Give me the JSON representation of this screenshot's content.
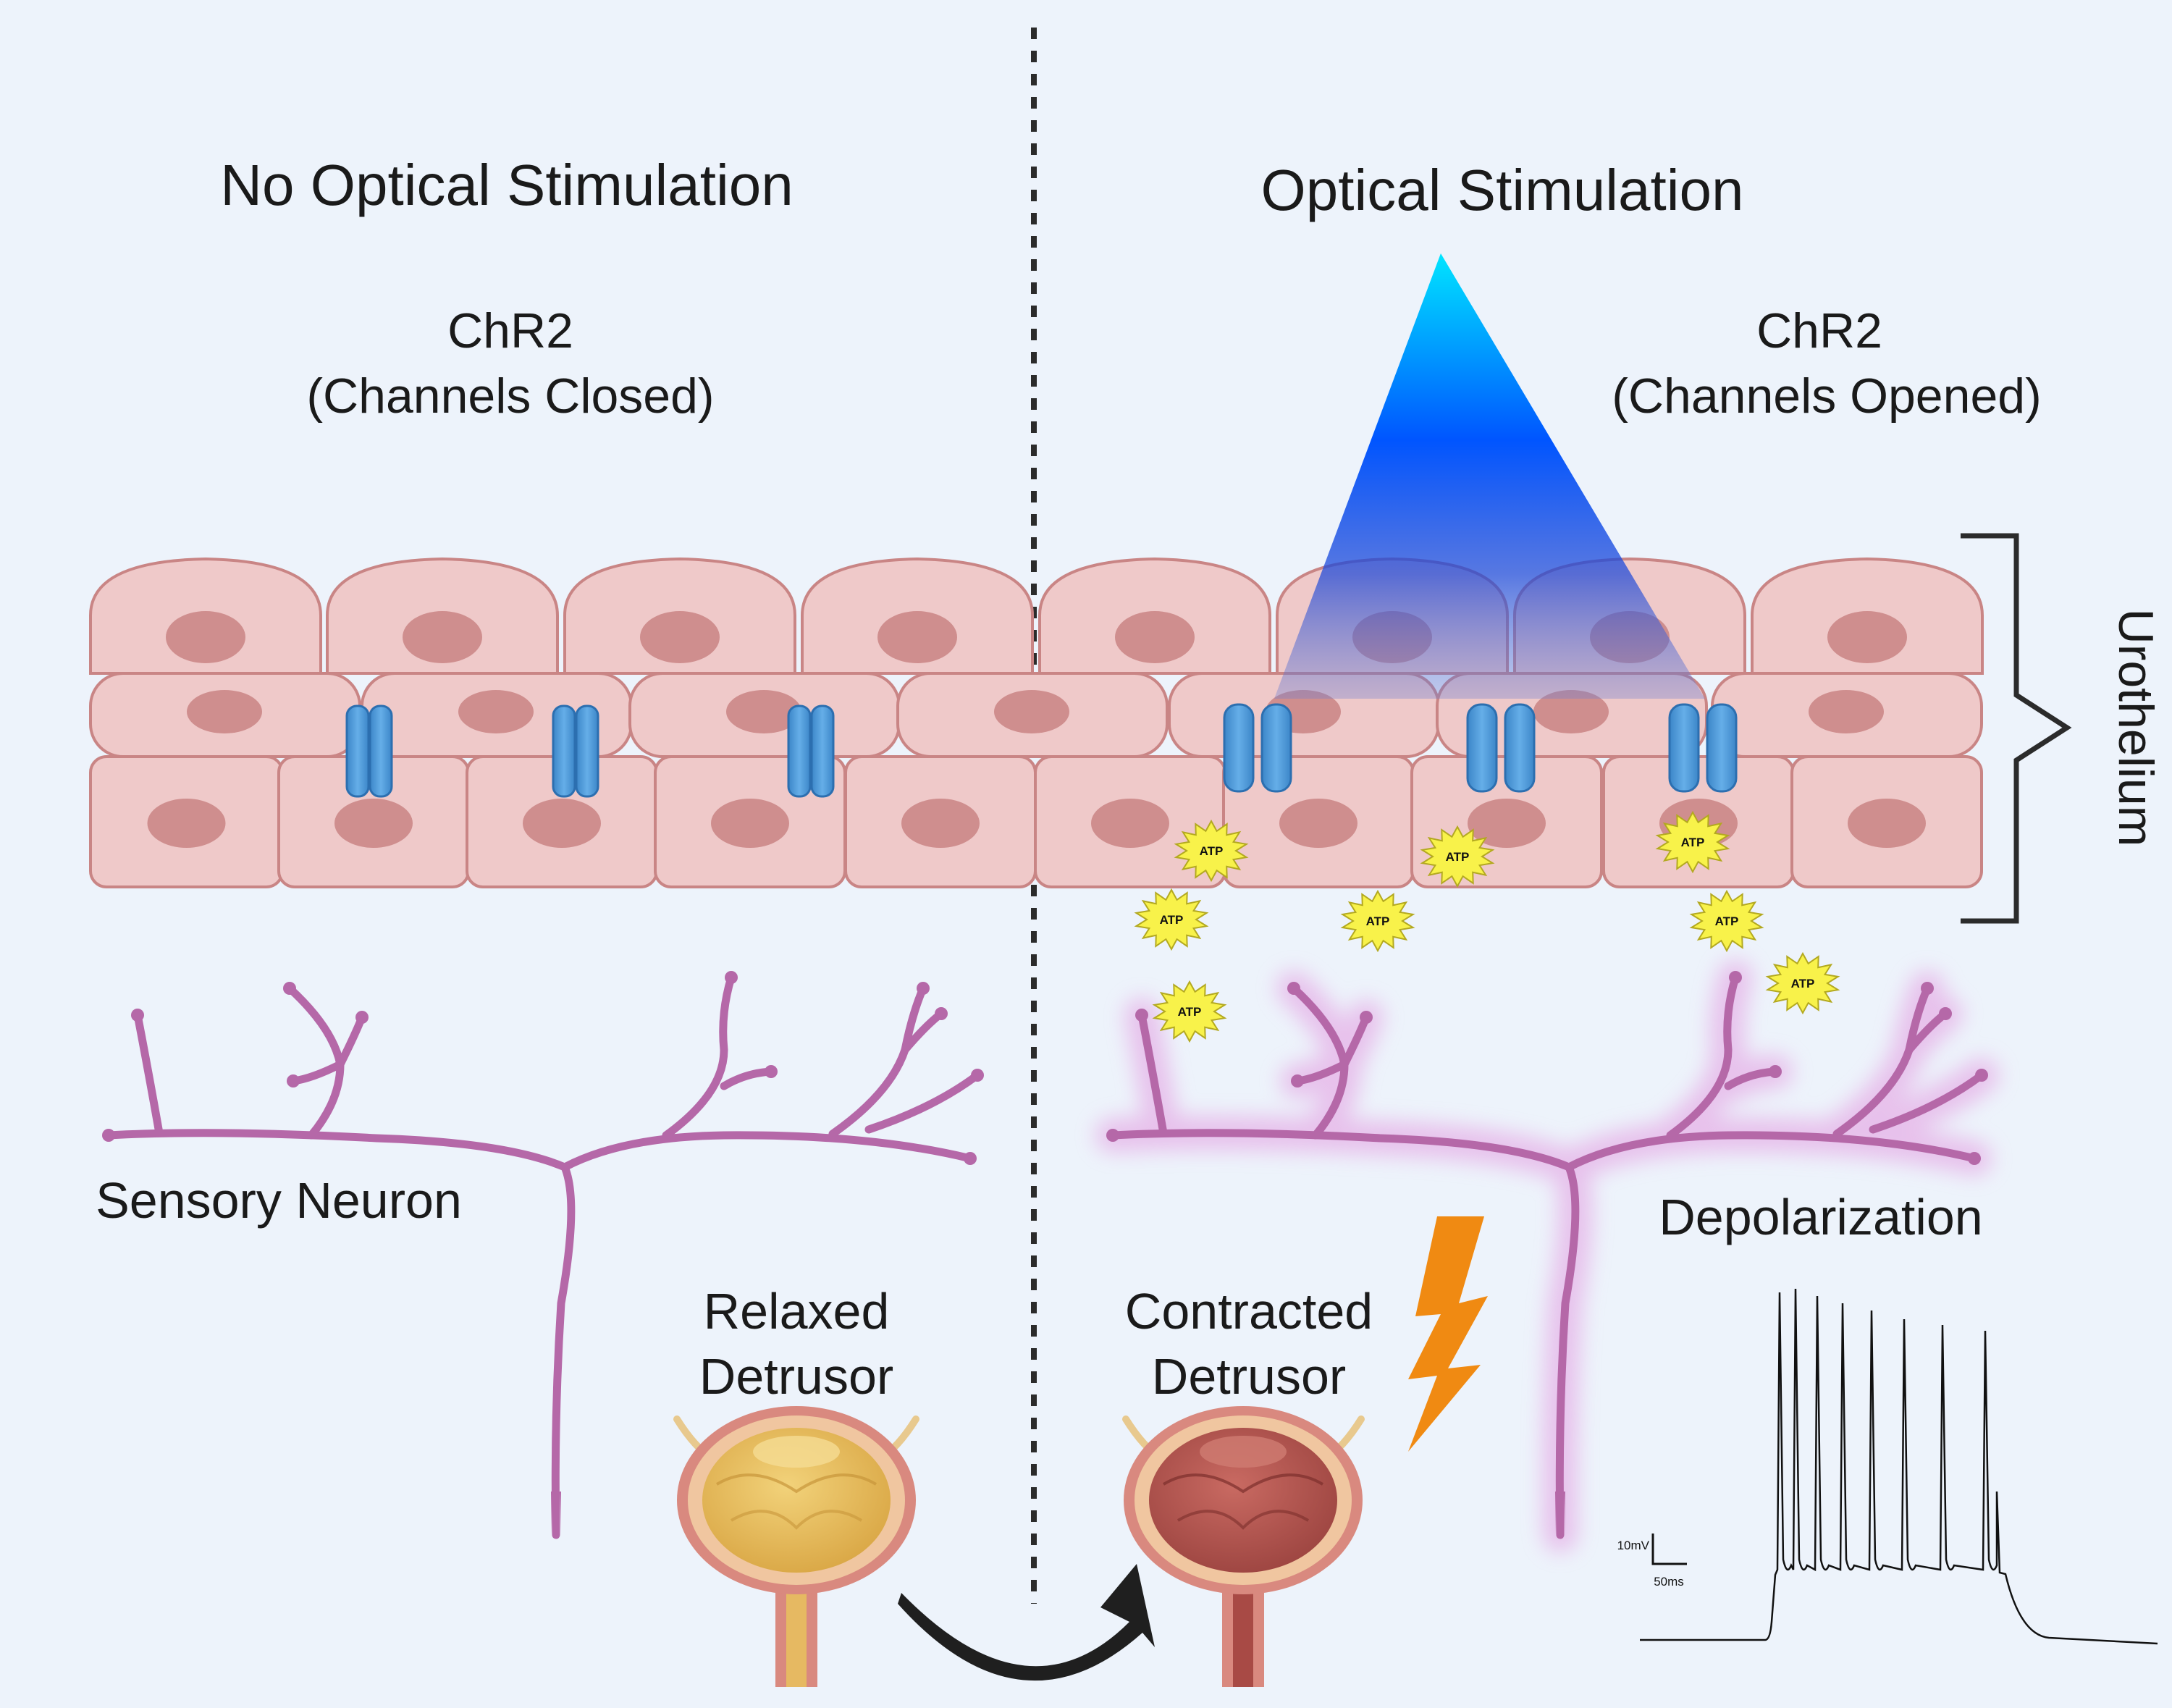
{
  "left_panel": {
    "title": "No Optical Stimulation",
    "chr2_title": "ChR2",
    "chr2_state": "(Channels Closed)",
    "neuron_label": "Sensory Neuron",
    "detrusor_line1": "Relaxed",
    "detrusor_line2": "Detrusor"
  },
  "right_panel": {
    "title": "Optical Stimulation",
    "chr2_title": "ChR2",
    "chr2_state": "(Channels Opened)",
    "layer_label": "Urothelium",
    "depolarization_label": "Depolarization",
    "detrusor_line1": "Contracted",
    "detrusor_line2": "Detrusor",
    "atp_label": "ATP",
    "scale_voltage": "10mV",
    "scale_time": "50ms"
  },
  "colors": {
    "background": "#edf3fb",
    "cell_fill": "#efc9c9",
    "cell_stroke": "#c98585",
    "nucleus": "#cf8e8e",
    "channel": "#4b97d6",
    "neuron": "#b568a8",
    "light_beam": "#1565ff",
    "atp_burst": "#f8f24a",
    "lightning": "#f08a12",
    "relaxed_bladder": "#e7b95a",
    "contracted_bladder": "#b55650"
  }
}
